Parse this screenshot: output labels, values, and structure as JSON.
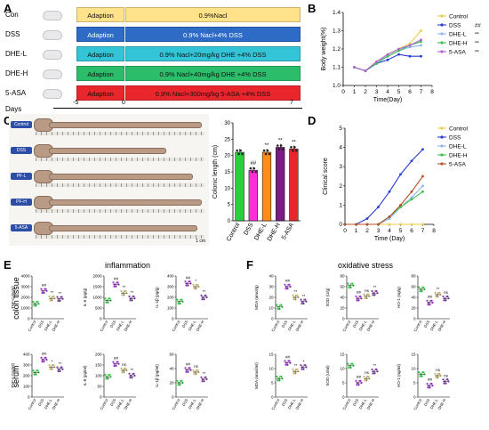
{
  "panel_letters": {
    "a": "A",
    "b": "B",
    "c": "C",
    "d": "D",
    "e": "E",
    "f": "F"
  },
  "panelA": {
    "groups": [
      "Con",
      "DSS",
      "DHE-L",
      "DHE-H",
      "5-ASA"
    ],
    "adaption": "Adaption",
    "treatments": [
      "0.9%Nacl",
      "0.9% Nacl+4% DSS",
      "0.9% Nacl+20mg/kg DHE +4% DSS",
      "0.9% Nacl+40mg/kg DHE +4% DSS",
      "0.9% Nacl+300mg/kg 5-ASA +4% DSS"
    ],
    "days_label": "Days",
    "day_ticks": [
      "-5",
      "0",
      "7"
    ],
    "colors": {
      "con": "#ffe28a",
      "dss": "#2e6bc7",
      "dhel": "#33c4d8",
      "dheh": "#2bbd6a",
      "asa": "#e8262b"
    }
  },
  "panelC": {
    "strips": [
      "Control",
      "DSS",
      "PF-L",
      "PF-H",
      "5-ASA"
    ],
    "scale": "1 cm",
    "chart_data": {
      "type": "bar",
      "categories": [
        "Control",
        "DSS",
        "DHE-L",
        "DHE-H",
        "5-ASA"
      ],
      "values": [
        21,
        15.5,
        21,
        22.5,
        22
      ],
      "ylabel": "Colonic length (cm)",
      "yticks": [
        "0",
        "5",
        "10",
        "15",
        "20",
        "25",
        "30"
      ],
      "ylim": [
        0,
        30
      ],
      "colors": [
        "#2ecc40",
        "#ff2fd8",
        "#ff8c1a",
        "#7a1b86",
        "#e8262b"
      ],
      "sig": [
        "",
        "##",
        "**",
        "**",
        "**"
      ]
    }
  },
  "panelB": {
    "chart_data": {
      "type": "line",
      "x": [
        1,
        2,
        3,
        4,
        5,
        6,
        7
      ],
      "series": [
        {
          "name": "Control",
          "values": [
            1.1,
            1.08,
            1.13,
            1.17,
            1.2,
            1.23,
            1.3
          ],
          "color": "#e6cf4a",
          "sig": ""
        },
        {
          "name": "DSS",
          "values": [
            1.1,
            1.08,
            1.12,
            1.14,
            1.17,
            1.16,
            1.16
          ],
          "color": "#2a3bd4",
          "sig": "##"
        },
        {
          "name": "DHE-L",
          "values": [
            1.1,
            1.08,
            1.13,
            1.16,
            1.19,
            1.21,
            1.22
          ],
          "color": "#8fb6f0",
          "sig": "**"
        },
        {
          "name": "DHE-H",
          "values": [
            1.1,
            1.08,
            1.12,
            1.16,
            1.19,
            1.22,
            1.24
          ],
          "color": "#3cc24a",
          "sig": "**"
        },
        {
          "name": "5-ASA",
          "values": [
            1.1,
            1.08,
            1.13,
            1.17,
            1.2,
            1.22,
            1.25
          ],
          "color": "#b25fd0",
          "sig": "**"
        }
      ],
      "xlabel": "Time(Day)",
      "ylabel": "Body weight(%)",
      "xticks": [
        "0",
        "1",
        "2",
        "3",
        "4",
        "5",
        "6",
        "7",
        "8"
      ],
      "yticks": [
        "1.0",
        "1.1",
        "1.2",
        "1.3",
        "1.4"
      ],
      "xlim": [
        0,
        8
      ],
      "ylim": [
        1.0,
        1.4
      ]
    }
  },
  "panelD": {
    "chart_data": {
      "type": "line",
      "x": [
        0,
        1,
        2,
        3,
        4,
        5,
        6,
        7
      ],
      "series": [
        {
          "name": "Control",
          "values": [
            0,
            0,
            0,
            0,
            0,
            0,
            0,
            0
          ],
          "color": "#e6cf4a"
        },
        {
          "name": "DSS",
          "values": [
            0,
            0,
            0.3,
            0.9,
            1.7,
            2.6,
            3.3,
            3.9
          ],
          "color": "#2a3bd4"
        },
        {
          "name": "DHE-L",
          "values": [
            0,
            0,
            0,
            0,
            0.3,
            0.9,
            1.4,
            2.0
          ],
          "color": "#8fb6f0"
        },
        {
          "name": "DHE-H",
          "values": [
            0,
            0,
            0,
            0,
            0.4,
            0.9,
            1.3,
            1.7
          ],
          "color": "#3cc24a"
        },
        {
          "name": "5-ASA",
          "values": [
            0,
            0,
            0,
            0,
            0.4,
            1.0,
            1.7,
            2.5
          ],
          "color": "#b8502a"
        }
      ],
      "xlabel": "Time (Day)",
      "ylabel": "Clinical score",
      "xticks": [
        "0",
        "1",
        "2",
        "3",
        "4",
        "5",
        "6",
        "7",
        "8"
      ],
      "yticks": [
        "0",
        "1",
        "2",
        "3",
        "4",
        "5"
      ],
      "xlim": [
        0,
        8
      ],
      "ylim": [
        0,
        5
      ]
    }
  },
  "panelE": {
    "title": "inflammation",
    "row_labels": [
      "colon tissue",
      "serum"
    ],
    "groups": [
      "Control",
      "DSS",
      "DHE-L",
      "DHE-H"
    ],
    "colors": [
      "#2ecc40",
      "#9b2fd0",
      "#c7b46a",
      "#7a3ba6"
    ],
    "charts": [
      {
        "ylabel": "TNF-α (pg/g)",
        "yticks": [
          "0",
          "1000",
          "2000",
          "3000",
          "4000"
        ],
        "ylim": [
          0,
          4000
        ],
        "means": [
          1400,
          2600,
          1900,
          1850
        ],
        "sig": [
          "",
          "##",
          "**",
          "**"
        ]
      },
      {
        "ylabel": "IL-6 (pg/g)",
        "yticks": [
          "0",
          "500",
          "1000",
          "1500",
          "2000"
        ],
        "ylim": [
          0,
          2000
        ],
        "means": [
          850,
          1600,
          1200,
          950
        ],
        "sig": [
          "",
          "##",
          "**",
          "**"
        ]
      },
      {
        "ylabel": "IL-1β (pg/g)",
        "yticks": [
          "0",
          "100",
          "200",
          "300",
          "400"
        ],
        "ylim": [
          0,
          400
        ],
        "means": [
          160,
          330,
          300,
          200
        ],
        "sig": [
          "",
          "##",
          "*",
          "**"
        ]
      },
      {
        "ylabel": "TNF-α (pg/ml)",
        "yticks": [
          "0",
          "100",
          "200",
          "300",
          "400"
        ],
        "ylim": [
          0,
          400
        ],
        "means": [
          230,
          350,
          280,
          260
        ],
        "sig": [
          "",
          "##",
          "*",
          "**"
        ]
      },
      {
        "ylabel": "IL-6 (pg/ml)",
        "yticks": [
          "0",
          "50",
          "100",
          "150",
          "200"
        ],
        "ylim": [
          0,
          200
        ],
        "means": [
          95,
          155,
          125,
          100
        ],
        "sig": [
          "",
          "##",
          "ns",
          "**"
        ]
      },
      {
        "ylabel": "IL-1β (pg/ml)",
        "yticks": [
          "0",
          "20",
          "40",
          "60"
        ],
        "ylim": [
          0,
          60
        ],
        "means": [
          20,
          38,
          35,
          25
        ],
        "sig": [
          "",
          "##",
          "ns",
          "**"
        ]
      }
    ]
  },
  "panelF": {
    "title": "oxidative stress",
    "groups": [
      "Control",
      "DSS",
      "DHE-L",
      "DHE-H"
    ],
    "colors": [
      "#2ecc40",
      "#9b2fd0",
      "#c7b46a",
      "#7a3ba6"
    ],
    "charts": [
      {
        "ylabel": "MDA (nmol/g)",
        "yticks": [
          "0",
          "10",
          "20",
          "30",
          "40"
        ],
        "ylim": [
          0,
          40
        ],
        "means": [
          11,
          30,
          20,
          16
        ],
        "sig": [
          "",
          "##",
          "**",
          "**"
        ]
      },
      {
        "ylabel": "SOD (U/g)",
        "yticks": [
          "0",
          "20",
          "40",
          "60",
          "80"
        ],
        "ylim": [
          0,
          80
        ],
        "means": [
          62,
          38,
          42,
          48
        ],
        "sig": [
          "",
          "##",
          "ns",
          "**"
        ]
      },
      {
        "ylabel": "HO-1 (ng/g)",
        "yticks": [
          "0",
          "20",
          "40",
          "60",
          "80"
        ],
        "ylim": [
          0,
          80
        ],
        "means": [
          55,
          30,
          45,
          38
        ],
        "sig": [
          "",
          "##",
          "**",
          "ns"
        ]
      },
      {
        "ylabel": "MDA (nmol/ml)",
        "yticks": [
          "0",
          "5",
          "10",
          "15"
        ],
        "ylim": [
          0,
          15
        ],
        "means": [
          6.5,
          12,
          9,
          10.5
        ],
        "sig": [
          "",
          "##",
          "**",
          "*"
        ]
      },
      {
        "ylabel": "SOD (U/ml)",
        "yticks": [
          "0",
          "5",
          "10",
          "15"
        ],
        "ylim": [
          0,
          15
        ],
        "means": [
          11,
          5,
          6.5,
          9
        ],
        "sig": [
          "",
          "##",
          "ns",
          "**"
        ]
      },
      {
        "ylabel": "HO-1 (ng/ml)",
        "yticks": [
          "0",
          "5",
          "10",
          "15"
        ],
        "ylim": [
          0,
          15
        ],
        "means": [
          8,
          4,
          7.5,
          5.5
        ],
        "sig": [
          "",
          "##",
          "ns",
          "ns"
        ]
      }
    ]
  }
}
